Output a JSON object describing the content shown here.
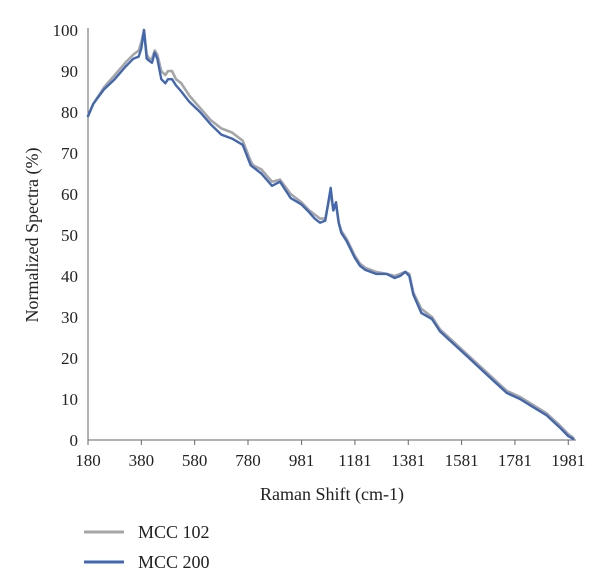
{
  "chart_data": {
    "type": "line",
    "title": "",
    "xlabel": "Raman Shift (cm-1)",
    "ylabel": "Normalized Spectra (%)",
    "xlim": [
      180,
      2010
    ],
    "ylim": [
      0,
      100
    ],
    "x_ticks": [
      180,
      380,
      580,
      780,
      981,
      1181,
      1381,
      1581,
      1781,
      1981
    ],
    "y_ticks": [
      0,
      10,
      20,
      30,
      40,
      50,
      60,
      70,
      80,
      90,
      100
    ],
    "grid": false,
    "legend_position": "bottom-left",
    "series": [
      {
        "name": "MCC 102",
        "color": "#a6a6a6",
        "points": [
          [
            180,
            79
          ],
          [
            200,
            82
          ],
          [
            240,
            86
          ],
          [
            280,
            89
          ],
          [
            320,
            92
          ],
          [
            350,
            94
          ],
          [
            370,
            95
          ],
          [
            380,
            97
          ],
          [
            390,
            100
          ],
          [
            400,
            94
          ],
          [
            410,
            93
          ],
          [
            420,
            93
          ],
          [
            430,
            95
          ],
          [
            440,
            94
          ],
          [
            455,
            90
          ],
          [
            470,
            89
          ],
          [
            480,
            90
          ],
          [
            495,
            90
          ],
          [
            510,
            88
          ],
          [
            530,
            87
          ],
          [
            560,
            84
          ],
          [
            600,
            81
          ],
          [
            640,
            78
          ],
          [
            680,
            76
          ],
          [
            720,
            75
          ],
          [
            760,
            73
          ],
          [
            790,
            68
          ],
          [
            800,
            67
          ],
          [
            830,
            66
          ],
          [
            870,
            63
          ],
          [
            900,
            63.5
          ],
          [
            940,
            60
          ],
          [
            980,
            58
          ],
          [
            1010,
            56
          ],
          [
            1030,
            55
          ],
          [
            1050,
            54
          ],
          [
            1070,
            54
          ],
          [
            1090,
            60.5
          ],
          [
            1100,
            56
          ],
          [
            1110,
            57.5
          ],
          [
            1120,
            53
          ],
          [
            1130,
            51
          ],
          [
            1150,
            49
          ],
          [
            1180,
            45
          ],
          [
            1200,
            43
          ],
          [
            1220,
            42
          ],
          [
            1260,
            41
          ],
          [
            1300,
            40.5
          ],
          [
            1330,
            40
          ],
          [
            1350,
            40.5
          ],
          [
            1370,
            41
          ],
          [
            1385,
            40.5
          ],
          [
            1400,
            36
          ],
          [
            1430,
            32
          ],
          [
            1470,
            30
          ],
          [
            1500,
            27
          ],
          [
            1550,
            24
          ],
          [
            1600,
            21
          ],
          [
            1650,
            18
          ],
          [
            1700,
            15
          ],
          [
            1750,
            12
          ],
          [
            1800,
            10.5
          ],
          [
            1850,
            8.5
          ],
          [
            1900,
            6.5
          ],
          [
            1950,
            3.5
          ],
          [
            1980,
            1.5
          ],
          [
            2000,
            0.5
          ]
        ]
      },
      {
        "name": "MCC 200",
        "color": "#4267b2",
        "points": [
          [
            180,
            79
          ],
          [
            200,
            82
          ],
          [
            240,
            85.5
          ],
          [
            280,
            88
          ],
          [
            320,
            91
          ],
          [
            350,
            93
          ],
          [
            370,
            93.5
          ],
          [
            380,
            95.5
          ],
          [
            390,
            100
          ],
          [
            400,
            93
          ],
          [
            410,
            92.5
          ],
          [
            420,
            92
          ],
          [
            430,
            94.5
          ],
          [
            440,
            93
          ],
          [
            455,
            88
          ],
          [
            470,
            87
          ],
          [
            480,
            88
          ],
          [
            495,
            88
          ],
          [
            510,
            86.5
          ],
          [
            530,
            85
          ],
          [
            560,
            82.5
          ],
          [
            600,
            80
          ],
          [
            640,
            77
          ],
          [
            680,
            74.5
          ],
          [
            720,
            73.5
          ],
          [
            760,
            72
          ],
          [
            790,
            67
          ],
          [
            800,
            66.5
          ],
          [
            830,
            65
          ],
          [
            870,
            62
          ],
          [
            900,
            63
          ],
          [
            940,
            59
          ],
          [
            980,
            57.5
          ],
          [
            1010,
            55.5
          ],
          [
            1030,
            54
          ],
          [
            1050,
            53
          ],
          [
            1070,
            53.5
          ],
          [
            1090,
            61.5
          ],
          [
            1100,
            56
          ],
          [
            1110,
            58
          ],
          [
            1120,
            53
          ],
          [
            1130,
            50.5
          ],
          [
            1150,
            48.5
          ],
          [
            1180,
            44.5
          ],
          [
            1200,
            42.5
          ],
          [
            1220,
            41.5
          ],
          [
            1260,
            40.5
          ],
          [
            1300,
            40.5
          ],
          [
            1330,
            39.5
          ],
          [
            1350,
            40
          ],
          [
            1370,
            41
          ],
          [
            1385,
            40
          ],
          [
            1400,
            35.5
          ],
          [
            1430,
            31
          ],
          [
            1470,
            29.5
          ],
          [
            1500,
            26.5
          ],
          [
            1550,
            23.5
          ],
          [
            1600,
            20.5
          ],
          [
            1650,
            17.5
          ],
          [
            1700,
            14.5
          ],
          [
            1750,
            11.5
          ],
          [
            1800,
            10
          ],
          [
            1850,
            8
          ],
          [
            1900,
            6
          ],
          [
            1950,
            3
          ],
          [
            1980,
            1
          ],
          [
            2000,
            0.3
          ]
        ]
      }
    ]
  }
}
